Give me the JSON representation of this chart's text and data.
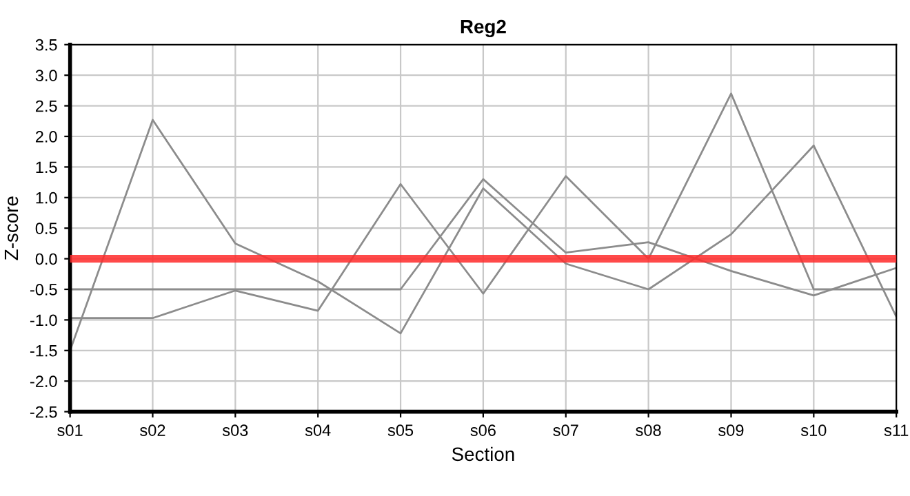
{
  "chart_data": {
    "type": "line",
    "title": "Reg2",
    "xlabel": "Section",
    "ylabel": "Z-score",
    "categories": [
      "s01",
      "s02",
      "s03",
      "s04",
      "s05",
      "s06",
      "s07",
      "s08",
      "s09",
      "s10",
      "s11"
    ],
    "series": [
      {
        "color": "#8c8c8c",
        "values": [
          -1.5,
          2.27,
          0.25,
          -0.37,
          -1.22,
          1.15,
          -0.08,
          -0.5,
          0.4,
          1.85,
          -0.95
        ]
      },
      {
        "color": "#8c8c8c",
        "values": [
          -0.5,
          -0.5,
          -0.5,
          -0.5,
          -0.5,
          1.3,
          0.1,
          0.27,
          -0.2,
          -0.6,
          -0.15
        ]
      },
      {
        "color": "#8c8c8c",
        "values": [
          -0.97,
          -0.97,
          -0.52,
          -0.85,
          1.22,
          -0.57,
          1.35,
          0.0,
          2.7,
          -0.5,
          -0.5
        ]
      }
    ],
    "ylim": [
      -2.5,
      3.5
    ],
    "yticks": [
      {
        "value": -2.5,
        "label": "-2.5"
      },
      {
        "value": -2,
        "label": "-2.0"
      },
      {
        "value": -1.5,
        "label": "-1.5"
      },
      {
        "value": -1,
        "label": "-1.0"
      },
      {
        "value": -0.5,
        "label": "-0.5"
      },
      {
        "value": 0,
        "label": "0.0"
      },
      {
        "value": 0.5,
        "label": "0.5"
      },
      {
        "value": 1,
        "label": "1.0"
      },
      {
        "value": 1.5,
        "label": "1.5"
      },
      {
        "value": 2,
        "label": "2.0"
      },
      {
        "value": 2.5,
        "label": "2.5"
      },
      {
        "value": 3,
        "label": "3.0"
      },
      {
        "value": 3.5,
        "label": "3.5"
      }
    ],
    "ref_lines": [
      {
        "axis": "y",
        "value": 0,
        "color": "#ff2a2a"
      }
    ],
    "grid": true,
    "marker": "none",
    "line_style": "solid"
  }
}
